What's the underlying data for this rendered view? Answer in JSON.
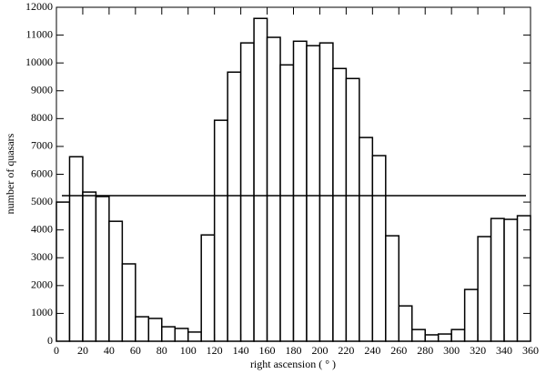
{
  "chart_data": {
    "type": "histogram",
    "xlabel": "right ascension ( ° )",
    "ylabel": "number of quasars",
    "bins": [
      0,
      10,
      20,
      30,
      40,
      50,
      60,
      70,
      80,
      90,
      100,
      110,
      120,
      130,
      140,
      150,
      160,
      170,
      180,
      190,
      200,
      210,
      220,
      230,
      240,
      250,
      260,
      270,
      280,
      290,
      300,
      310,
      320,
      330,
      340,
      350,
      360
    ],
    "values": [
      5000,
      6630,
      5360,
      5200,
      4310,
      2780,
      880,
      820,
      520,
      460,
      330,
      3820,
      7940,
      9670,
      10720,
      11600,
      10920,
      9930,
      10780,
      10620,
      10720,
      9800,
      9440,
      7320,
      6670,
      3790,
      1270,
      420,
      230,
      260,
      420,
      1860,
      3760,
      4410,
      4380,
      4510
    ],
    "color": "#ffffff",
    "reference_line": 5230,
    "xlim": [
      0,
      360
    ],
    "xticks": [
      0,
      20,
      40,
      60,
      80,
      100,
      120,
      140,
      160,
      180,
      200,
      220,
      240,
      260,
      280,
      300,
      320,
      340,
      360
    ],
    "ylim": [
      0,
      12000
    ],
    "yticks": [
      0,
      1000,
      2000,
      3000,
      4000,
      5000,
      6000,
      7000,
      8000,
      9000,
      10000,
      11000,
      12000
    ]
  }
}
